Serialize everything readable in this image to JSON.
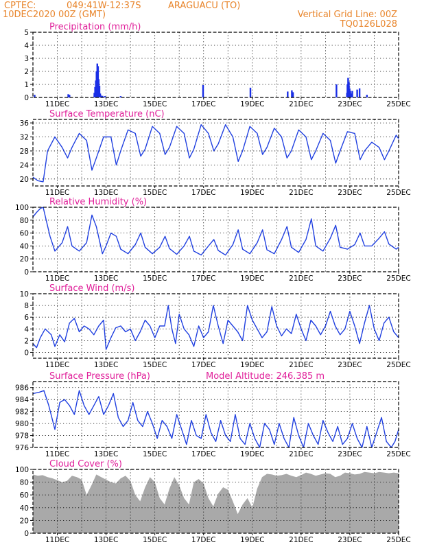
{
  "header": {
    "source": "CPTEC:",
    "coords": "049:41W-12:37S",
    "station": "ARAGUACU (TO)",
    "init": "10DEC2020 00Z (GMT)",
    "grid_note": "Vertical Grid Line: 00Z",
    "code": "TQ0126L028"
  },
  "colors": {
    "line": "#2040e0",
    "bar": "#1a2fe6",
    "cloud": "#a9a9a9",
    "header": "#e8842a",
    "title": "#e0209a"
  },
  "chart_data": [
    {
      "type": "bar",
      "title": "Precipitation (mm/h)",
      "ylim": [
        0,
        5
      ],
      "yticks": [
        "0",
        "1",
        "2",
        "3",
        "4",
        "5"
      ],
      "xtick_labels": [
        "11DEC",
        "13DEC",
        "15DEC",
        "17DEC",
        "19DEC",
        "21DEC",
        "23DEC",
        "25DEC"
      ],
      "xlim_days": [
        10,
        25
      ],
      "grid": "dotted",
      "x": [
        10.07,
        11.45,
        11.5,
        12.52,
        12.55,
        12.58,
        12.61,
        12.64,
        12.67,
        12.7,
        12.73,
        12.76,
        12.79,
        12.85,
        12.95,
        13.6,
        16.98,
        18.92,
        20.45,
        20.62,
        20.67,
        22.45,
        22.88,
        22.9,
        22.93,
        22.96,
        22.99,
        23.02,
        23.05,
        23.1,
        23.3,
        23.4,
        23.7
      ],
      "values": [
        0.2,
        0.25,
        0.2,
        0.35,
        0.8,
        1.3,
        2.0,
        2.6,
        2.4,
        1.4,
        0.9,
        0.3,
        0.15,
        0.12,
        0.1,
        0.1,
        0.95,
        0.75,
        0.45,
        0.55,
        0.4,
        1.0,
        0.35,
        1.0,
        1.5,
        1.2,
        0.7,
        0.5,
        0.3,
        0.5,
        0.6,
        0.7,
        0.2
      ]
    },
    {
      "type": "line",
      "title": "Surface Temperature (nC)",
      "ylim": [
        18,
        37
      ],
      "yticks": [
        "20",
        "24",
        "28",
        "32",
        "36"
      ],
      "xtick_labels": [
        "11DEC",
        "13DEC",
        "15DEC",
        "17DEC",
        "19DEC",
        "21DEC",
        "23DEC",
        "25DEC"
      ],
      "grid": "dotted",
      "x": [
        10.0,
        10.2,
        10.42,
        10.6,
        10.9,
        11.2,
        11.42,
        11.6,
        11.9,
        12.2,
        12.42,
        12.6,
        12.9,
        13.2,
        13.42,
        13.6,
        13.9,
        14.2,
        14.42,
        14.6,
        14.9,
        15.2,
        15.42,
        15.6,
        15.9,
        16.2,
        16.42,
        16.6,
        16.9,
        17.2,
        17.42,
        17.6,
        17.9,
        18.2,
        18.42,
        18.6,
        18.9,
        19.2,
        19.42,
        19.6,
        19.9,
        20.2,
        20.42,
        20.6,
        20.9,
        21.2,
        21.42,
        21.6,
        21.9,
        22.2,
        22.42,
        22.6,
        22.9,
        23.2,
        23.42,
        23.6,
        23.9,
        24.2,
        24.42,
        24.6,
        24.9,
        25.0
      ],
      "values": [
        20.5,
        19.5,
        19.2,
        28.0,
        32.0,
        29.0,
        26.0,
        29.0,
        33.0,
        31.0,
        22.5,
        26.0,
        32.0,
        32.0,
        24.0,
        28.0,
        34.0,
        33.0,
        26.5,
        28.5,
        35.0,
        33.0,
        27.0,
        29.0,
        35.0,
        33.0,
        26.0,
        28.5,
        35.5,
        33.0,
        28.0,
        30.0,
        35.5,
        32.0,
        25.0,
        28.0,
        35.0,
        33.0,
        27.0,
        29.0,
        34.5,
        32.0,
        26.0,
        28.0,
        34.0,
        32.0,
        25.5,
        28.0,
        33.0,
        31.0,
        24.5,
        28.0,
        33.5,
        33.0,
        25.5,
        28.0,
        30.5,
        29.0,
        25.5,
        28.0,
        32.5,
        31.5
      ]
    },
    {
      "type": "line",
      "title": "Relative Humidity (%)",
      "ylim": [
        0,
        100
      ],
      "yticks": [
        "0",
        "20",
        "40",
        "60",
        "80",
        "100"
      ],
      "xtick_labels": [
        "11DEC",
        "13DEC",
        "15DEC",
        "17DEC",
        "19DEC",
        "21DEC",
        "23DEC",
        "25DEC"
      ],
      "grid": "dotted",
      "x": [
        10.0,
        10.15,
        10.3,
        10.42,
        10.7,
        10.9,
        11.2,
        11.42,
        11.6,
        11.9,
        12.2,
        12.42,
        12.6,
        12.85,
        13.0,
        13.2,
        13.42,
        13.6,
        13.9,
        14.2,
        14.42,
        14.6,
        14.9,
        15.2,
        15.42,
        15.6,
        15.9,
        16.2,
        16.42,
        16.6,
        16.9,
        17.2,
        17.42,
        17.6,
        17.9,
        18.2,
        18.42,
        18.6,
        18.9,
        19.2,
        19.42,
        19.6,
        19.9,
        20.2,
        20.42,
        20.6,
        20.9,
        21.2,
        21.42,
        21.6,
        21.9,
        22.2,
        22.42,
        22.6,
        22.9,
        23.2,
        23.42,
        23.6,
        23.9,
        24.2,
        24.42,
        24.6,
        24.9,
        25.0
      ],
      "values": [
        85,
        92,
        98,
        100,
        55,
        32,
        45,
        70,
        40,
        32,
        45,
        88,
        70,
        28,
        40,
        60,
        55,
        35,
        28,
        42,
        60,
        38,
        28,
        38,
        55,
        36,
        27,
        40,
        55,
        32,
        26,
        40,
        50,
        33,
        26,
        42,
        65,
        35,
        28,
        45,
        65,
        34,
        28,
        50,
        70,
        38,
        30,
        50,
        82,
        40,
        32,
        52,
        72,
        38,
        35,
        42,
        60,
        40,
        40,
        52,
        62,
        43,
        35,
        38
      ]
    },
    {
      "type": "line",
      "title": "Surface Wind (m/s)",
      "ylim": [
        -1,
        10
      ],
      "yticks": [
        "0",
        "2",
        "4",
        "6",
        "8",
        "10"
      ],
      "xtick_labels": [
        "11DEC",
        "13DEC",
        "15DEC",
        "17DEC",
        "19DEC",
        "21DEC",
        "23DEC",
        "25DEC"
      ],
      "grid": "dotted",
      "x": [
        10.0,
        10.15,
        10.3,
        10.5,
        10.75,
        10.9,
        11.1,
        11.3,
        11.5,
        11.7,
        11.9,
        12.1,
        12.3,
        12.5,
        12.7,
        12.9,
        13.0,
        13.2,
        13.4,
        13.6,
        13.8,
        14.0,
        14.2,
        14.4,
        14.6,
        14.8,
        15.0,
        15.2,
        15.4,
        15.55,
        15.7,
        15.85,
        16.0,
        16.2,
        16.4,
        16.6,
        16.8,
        17.0,
        17.2,
        17.4,
        17.6,
        17.8,
        18.0,
        18.2,
        18.4,
        18.6,
        18.8,
        19.0,
        19.2,
        19.4,
        19.6,
        19.8,
        20.0,
        20.2,
        20.4,
        20.6,
        20.8,
        21.0,
        21.2,
        21.4,
        21.6,
        21.8,
        22.0,
        22.2,
        22.4,
        22.6,
        22.8,
        23.0,
        23.2,
        23.4,
        23.6,
        23.8,
        24.0,
        24.2,
        24.4,
        24.6,
        24.8,
        25.0
      ],
      "values": [
        1.5,
        0.8,
        2.5,
        4.0,
        3.0,
        1.0,
        3.0,
        1.8,
        5.0,
        5.8,
        3.5,
        4.5,
        4.0,
        3.0,
        4.5,
        5.5,
        0.5,
        2.5,
        4.2,
        4.5,
        3.5,
        4.0,
        2.0,
        3.5,
        5.5,
        4.5,
        2.5,
        4.5,
        4.5,
        8.0,
        4.0,
        1.5,
        6.5,
        4.0,
        3.0,
        1.0,
        4.5,
        2.5,
        3.5,
        8.0,
        4.5,
        1.5,
        5.5,
        4.5,
        3.5,
        2.0,
        8.0,
        5.5,
        4.0,
        2.5,
        3.5,
        7.8,
        4.5,
        2.8,
        4.0,
        3.2,
        6.5,
        4.0,
        2.0,
        5.5,
        4.5,
        3.0,
        4.5,
        7.0,
        4.5,
        3.0,
        4.0,
        7.0,
        4.5,
        1.5,
        5.0,
        8.0,
        4.0,
        2.0,
        5.0,
        6.0,
        3.5,
        2.5
      ]
    },
    {
      "type": "line",
      "title": "Surface Pressure (hPa)",
      "annotation": "Model Altitude: 246.385 m",
      "ylim": [
        976,
        987
      ],
      "yticks": [
        "976",
        "978",
        "980",
        "982",
        "984",
        "986"
      ],
      "xtick_labels": [
        "11DEC",
        "13DEC",
        "15DEC",
        "17DEC",
        "19DEC",
        "21DEC",
        "23DEC",
        "25DEC"
      ],
      "grid": "dotted",
      "x": [
        10.0,
        10.25,
        10.45,
        10.65,
        10.9,
        11.1,
        11.3,
        11.5,
        11.7,
        11.9,
        12.1,
        12.3,
        12.5,
        12.7,
        12.9,
        13.1,
        13.3,
        13.5,
        13.7,
        13.9,
        14.1,
        14.3,
        14.5,
        14.7,
        14.9,
        15.1,
        15.3,
        15.5,
        15.7,
        15.9,
        16.1,
        16.3,
        16.5,
        16.7,
        16.9,
        17.1,
        17.3,
        17.5,
        17.7,
        17.9,
        18.1,
        18.3,
        18.5,
        18.7,
        18.9,
        19.1,
        19.3,
        19.5,
        19.7,
        19.9,
        20.1,
        20.3,
        20.5,
        20.7,
        20.9,
        21.1,
        21.3,
        21.5,
        21.7,
        21.9,
        22.1,
        22.3,
        22.5,
        22.7,
        22.9,
        23.1,
        23.3,
        23.5,
        23.7,
        23.9,
        24.1,
        24.3,
        24.5,
        24.7,
        24.85,
        25.0
      ],
      "values": [
        985.0,
        985.2,
        985.5,
        983.0,
        979.0,
        983.5,
        984.0,
        983.0,
        981.5,
        985.5,
        983.0,
        981.5,
        983.0,
        984.5,
        981.5,
        983.0,
        985.0,
        981.0,
        979.5,
        980.5,
        983.5,
        980.5,
        979.5,
        982.0,
        980.0,
        977.5,
        980.5,
        979.5,
        977.5,
        981.5,
        979.0,
        976.5,
        980.5,
        978.0,
        977.5,
        981.5,
        978.5,
        977.0,
        980.5,
        978.0,
        977.0,
        981.5,
        977.5,
        976.5,
        980.0,
        977.5,
        976.0,
        980.0,
        979.0,
        976.5,
        980.0,
        977.5,
        976.0,
        981.0,
        978.0,
        976.0,
        980.0,
        978.0,
        976.5,
        980.5,
        978.5,
        977.0,
        979.5,
        976.5,
        977.5,
        980.0,
        977.5,
        976.0,
        979.5,
        976.0,
        978.5,
        981.0,
        977.0,
        976.0,
        977.0,
        979.0
      ]
    },
    {
      "type": "area",
      "title": "Cloud Cover (%)",
      "ylim": [
        0,
        100
      ],
      "yticks": [
        "0",
        "20",
        "40",
        "60",
        "80",
        "100"
      ],
      "xtick_labels": [
        "11DEC",
        "13DEC",
        "15DEC",
        "17DEC",
        "19DEC",
        "21DEC",
        "23DEC",
        "25DEC"
      ],
      "grid": "dotted",
      "x": [
        10.0,
        10.2,
        10.4,
        10.6,
        10.8,
        11.0,
        11.2,
        11.4,
        11.6,
        11.8,
        12.0,
        12.2,
        12.4,
        12.6,
        12.8,
        13.0,
        13.2,
        13.4,
        13.6,
        13.8,
        14.0,
        14.2,
        14.4,
        14.6,
        14.8,
        15.0,
        15.2,
        15.4,
        15.6,
        15.8,
        16.0,
        16.2,
        16.4,
        16.6,
        16.8,
        17.0,
        17.2,
        17.4,
        17.6,
        17.8,
        18.0,
        18.2,
        18.4,
        18.6,
        18.8,
        19.0,
        19.2,
        19.4,
        19.6,
        19.8,
        20.0,
        20.2,
        20.4,
        20.6,
        20.8,
        21.0,
        21.2,
        21.4,
        21.6,
        21.8,
        22.0,
        22.2,
        22.4,
        22.6,
        22.8,
        23.0,
        23.2,
        23.4,
        23.6,
        23.8,
        24.0,
        24.2,
        24.4,
        24.6,
        24.8,
        25.0
      ],
      "values": [
        92,
        90,
        91,
        88,
        86,
        83,
        80,
        82,
        90,
        88,
        84,
        60,
        75,
        92,
        88,
        84,
        80,
        78,
        86,
        90,
        82,
        60,
        50,
        72,
        88,
        80,
        55,
        45,
        70,
        88,
        75,
        55,
        45,
        80,
        85,
        78,
        55,
        42,
        62,
        72,
        68,
        50,
        30,
        45,
        55,
        40,
        70,
        88,
        93,
        92,
        90,
        91,
        93,
        90,
        88,
        91,
        95,
        93,
        90,
        92,
        94,
        93,
        88,
        90,
        95,
        94,
        92,
        93,
        96,
        95,
        94,
        96,
        95,
        94,
        95,
        94
      ]
    }
  ]
}
